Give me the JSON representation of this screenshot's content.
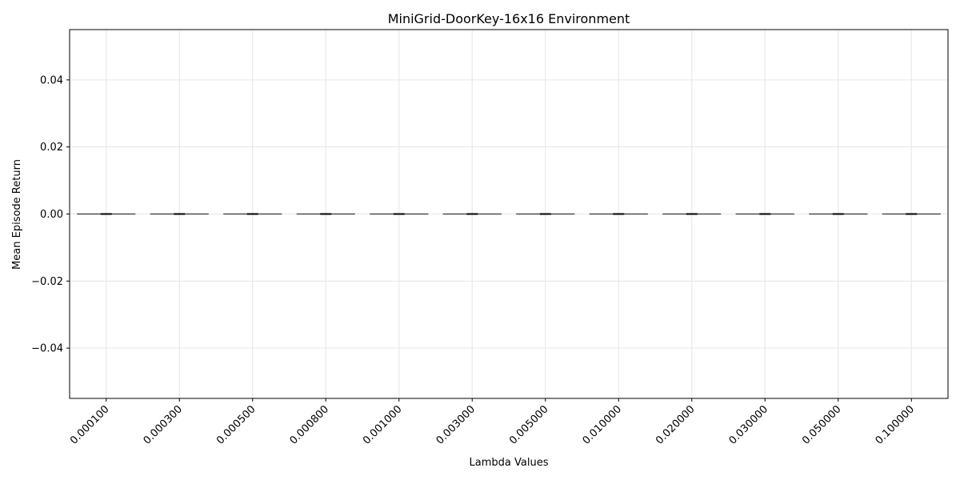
{
  "chart_data": {
    "type": "box",
    "title": "MiniGrid-DoorKey-16x16 Environment",
    "xlabel": "Lambda Values",
    "ylabel": "Mean Episode Return",
    "categories": [
      "0.000100",
      "0.000300",
      "0.000500",
      "0.000800",
      "0.001000",
      "0.003000",
      "0.005000",
      "0.010000",
      "0.020000",
      "0.030000",
      "0.050000",
      "0.100000"
    ],
    "values": [
      0,
      0,
      0,
      0,
      0,
      0,
      0,
      0,
      0,
      0,
      0,
      0
    ],
    "ylim": [
      -0.055,
      0.055
    ],
    "yticks": [
      -0.04,
      -0.02,
      0.0,
      0.02,
      0.04
    ],
    "ytick_labels": [
      "−0.04",
      "−0.02",
      "0.00",
      "0.02",
      "0.04"
    ],
    "grid": true
  }
}
